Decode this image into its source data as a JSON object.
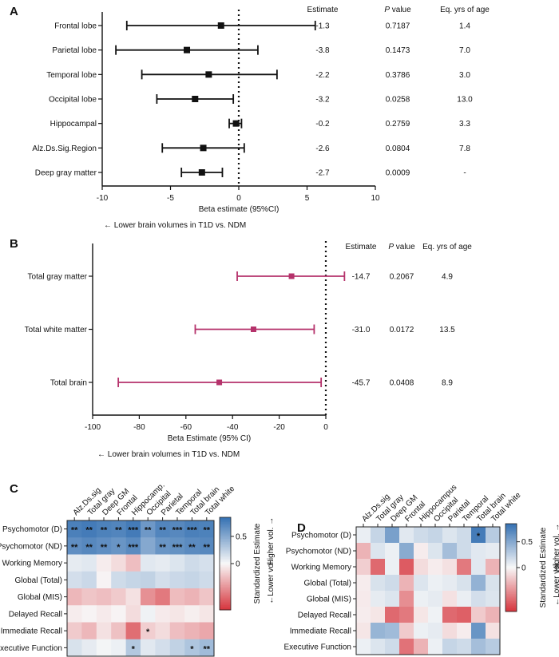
{
  "panels": {
    "A": {
      "label": "A"
    },
    "B": {
      "label": "B"
    },
    "C": {
      "label": "C"
    },
    "D": {
      "label": "D"
    }
  },
  "chart_data": [
    {
      "id": "A",
      "type": "forest",
      "categories": [
        "Frontal lobe",
        "Parietal lobe",
        "Temporal lobe",
        "Occipital lobe",
        "Hippocampal",
        "Alz.Ds.Sig.Region",
        "Deep gray matter"
      ],
      "estimate": [
        -1.3,
        -3.8,
        -2.2,
        -3.2,
        -0.2,
        -2.6,
        -2.7
      ],
      "ci_low": [
        -8.2,
        -9.0,
        -7.1,
        -6.0,
        -0.7,
        -5.6,
        -4.2
      ],
      "ci_high": [
        5.6,
        1.4,
        2.8,
        -0.4,
        0.2,
        0.4,
        -1.2
      ],
      "xlim": [
        -10,
        10
      ],
      "xticks": [
        "-10",
        "-5",
        "0",
        "5",
        "10"
      ],
      "xlabel": "Beta estimate (95%CI)",
      "arrow_note": "← Lower brain volumes in T1D vs. NDM",
      "columns": {
        "headers": [
          "Estimate",
          "P value",
          "Eq. yrs of age"
        ],
        "estimate": [
          "-1.3",
          "-3.8",
          "-2.2",
          "-3.2",
          "-0.2",
          "-2.6",
          "-2.7"
        ],
        "p_value": [
          "0.7187",
          "0.1473",
          "0.3786",
          "0.0258",
          "0.2759",
          "0.0804",
          "0.0009"
        ],
        "eq_years": [
          "1.4",
          "7.0",
          "3.0",
          "13.0",
          "3.3",
          "7.8",
          "-"
        ]
      },
      "color": "#111111"
    },
    {
      "id": "B",
      "type": "forest",
      "categories": [
        "Total gray matter",
        "Total white matter",
        "Total brain"
      ],
      "estimate": [
        -14.7,
        -31.0,
        -45.7
      ],
      "ci_low": [
        -38.0,
        -56.0,
        -89.0
      ],
      "ci_high": [
        8.0,
        -5.0,
        -2.0
      ],
      "xlim": [
        -100,
        0
      ],
      "xticks": [
        "-100",
        "-80",
        "-60",
        "-40",
        "-20",
        "0"
      ],
      "xlabel": "Beta Estimate (95% CI)",
      "arrow_note": "← Lower brain volumes in T1D vs. NDM",
      "columns": {
        "headers": [
          "Estimate",
          "P value",
          "Eq. yrs of age"
        ],
        "estimate": [
          "-14.7",
          "-31.0",
          "-45.7"
        ],
        "p_value": [
          "0.2067",
          "0.0172",
          "0.0408"
        ],
        "eq_years": [
          "4.9",
          "13.5",
          "8.9"
        ]
      },
      "color": "#b5326b"
    },
    {
      "id": "C",
      "type": "heatmap",
      "columns": [
        "Alz.Ds.sig",
        "Total gray",
        "Deep GM",
        "Frontal",
        "Hippocamp.",
        "Occipital",
        "Parietal",
        "Temporal",
        "Total brain",
        "Total white"
      ],
      "rows": [
        "Psychomotor (D)",
        "Psychomotor (ND)",
        "Working Memory",
        "Global (Total)",
        "Global (MIS)",
        "Delayed Recall",
        "Immediate Recall",
        "Executive Function"
      ],
      "values": [
        [
          0.75,
          0.78,
          0.74,
          0.72,
          0.78,
          0.6,
          0.72,
          0.7,
          0.75,
          0.74
        ],
        [
          0.66,
          0.7,
          0.66,
          0.62,
          0.68,
          0.5,
          0.62,
          0.64,
          0.68,
          0.7
        ],
        [
          0.08,
          0.1,
          -0.05,
          -0.12,
          -0.25,
          0.1,
          0.08,
          0.12,
          0.18,
          0.15
        ],
        [
          0.16,
          0.2,
          -0.02,
          0.18,
          0.22,
          0.24,
          0.16,
          0.2,
          0.22,
          0.18
        ],
        [
          -0.28,
          -0.22,
          -0.25,
          -0.2,
          -0.1,
          -0.45,
          -0.55,
          -0.26,
          -0.3,
          -0.22
        ],
        [
          -0.05,
          -0.02,
          -0.06,
          -0.02,
          -0.12,
          0.04,
          -0.06,
          -0.08,
          -0.04,
          -0.08
        ],
        [
          -0.2,
          -0.28,
          -0.1,
          -0.24,
          -0.6,
          -0.18,
          -0.12,
          -0.25,
          -0.3,
          -0.35
        ],
        [
          0.14,
          0.08,
          0.02,
          0.05,
          0.3,
          0.1,
          0.16,
          0.24,
          0.32,
          0.38
        ]
      ],
      "stars": [
        [
          "**",
          "**",
          "**",
          "**",
          "***",
          "**",
          "**",
          "***",
          "***",
          "**"
        ],
        [
          "**",
          "**",
          "**",
          "*",
          "***",
          "",
          "**",
          "***",
          "**",
          "**"
        ],
        [
          "",
          "",
          "",
          "",
          "",
          "",
          "",
          "",
          "",
          ""
        ],
        [
          "",
          "",
          "",
          "",
          "",
          "",
          "",
          "",
          "",
          ""
        ],
        [
          "",
          "",
          "",
          "",
          "",
          "",
          "",
          "",
          "",
          ""
        ],
        [
          "",
          "",
          "",
          "",
          "",
          "",
          "",
          "",
          "",
          ""
        ],
        [
          "",
          "",
          "",
          "",
          "",
          "*",
          "",
          "",
          "",
          ""
        ],
        [
          "",
          "",
          "",
          "",
          "*",
          "",
          "",
          "",
          "*",
          "**"
        ]
      ],
      "colorbar": {
        "ticks": [
          "0.5",
          "0"
        ],
        "label": "Standardized Estimate",
        "higher": "Higher vol. →",
        "lower": "←Lower vol."
      },
      "color_range": [
        -0.85,
        0.85
      ]
    },
    {
      "id": "D",
      "type": "heatmap",
      "columns": [
        "Alz.Ds.sig",
        "Total gray",
        "Deep GM",
        "Frontal",
        "Hippocampus",
        "Occipital",
        "Parietal",
        "Temporal",
        "Total brain",
        "Total white"
      ],
      "rows": [
        "Psychomotor (D)",
        "Psychomotor (ND)",
        "Working Memory",
        "Global (Total)",
        "Global (MIS)",
        "Delayed Recall",
        "Immediate Recall",
        "Executive Function"
      ],
      "values": [
        [
          0.06,
          0.22,
          0.55,
          0.1,
          0.18,
          0.22,
          0.12,
          0.18,
          0.78,
          0.28
        ],
        [
          -0.3,
          0.12,
          0.05,
          0.48,
          -0.05,
          0.12,
          0.36,
          0.18,
          0.1,
          0.08
        ],
        [
          -0.18,
          -0.62,
          0.05,
          -0.68,
          -0.12,
          -0.05,
          -0.1,
          -0.55,
          0.1,
          -0.3
        ],
        [
          -0.05,
          0.14,
          0.18,
          -0.3,
          0.12,
          0.05,
          0.08,
          0.14,
          0.44,
          0.14
        ],
        [
          -0.06,
          0.08,
          0.12,
          -0.46,
          0.05,
          0.08,
          -0.1,
          0.06,
          0.16,
          0.12
        ],
        [
          -0.05,
          -0.08,
          -0.62,
          -0.55,
          -0.08,
          0.04,
          -0.62,
          -0.66,
          -0.2,
          -0.3
        ],
        [
          -0.08,
          0.42,
          0.38,
          -0.2,
          0.05,
          0.08,
          -0.12,
          -0.05,
          0.62,
          -0.1
        ],
        [
          0.05,
          0.12,
          0.18,
          -0.58,
          -0.3,
          0.05,
          0.22,
          0.18,
          0.36,
          0.28
        ]
      ],
      "stars": [
        [
          "",
          "",
          "",
          "",
          "",
          "",
          "",
          "",
          "*",
          ""
        ],
        [
          "",
          "",
          "",
          "",
          "",
          "",
          "",
          "",
          "",
          ""
        ],
        [
          "",
          "",
          "",
          "",
          "",
          "",
          "",
          "",
          "",
          ""
        ],
        [
          "",
          "",
          "",
          "",
          "",
          "",
          "",
          "",
          "",
          ""
        ],
        [
          "",
          "",
          "",
          "",
          "",
          "",
          "",
          "",
          "",
          ""
        ],
        [
          "",
          "",
          "",
          "",
          "",
          "",
          "",
          "",
          "",
          ""
        ],
        [
          "",
          "",
          "",
          "",
          "",
          "",
          "",
          "",
          "",
          ""
        ],
        [
          "",
          "",
          "",
          "",
          "",
          "",
          "",
          "",
          "",
          ""
        ]
      ],
      "colorbar": {
        "ticks": [
          "0.5",
          "0"
        ],
        "label": "Standardized Estimate",
        "higher": "Higher vol. →",
        "lower": "←Lower vol."
      },
      "color_range": [
        -0.85,
        0.85
      ]
    }
  ]
}
